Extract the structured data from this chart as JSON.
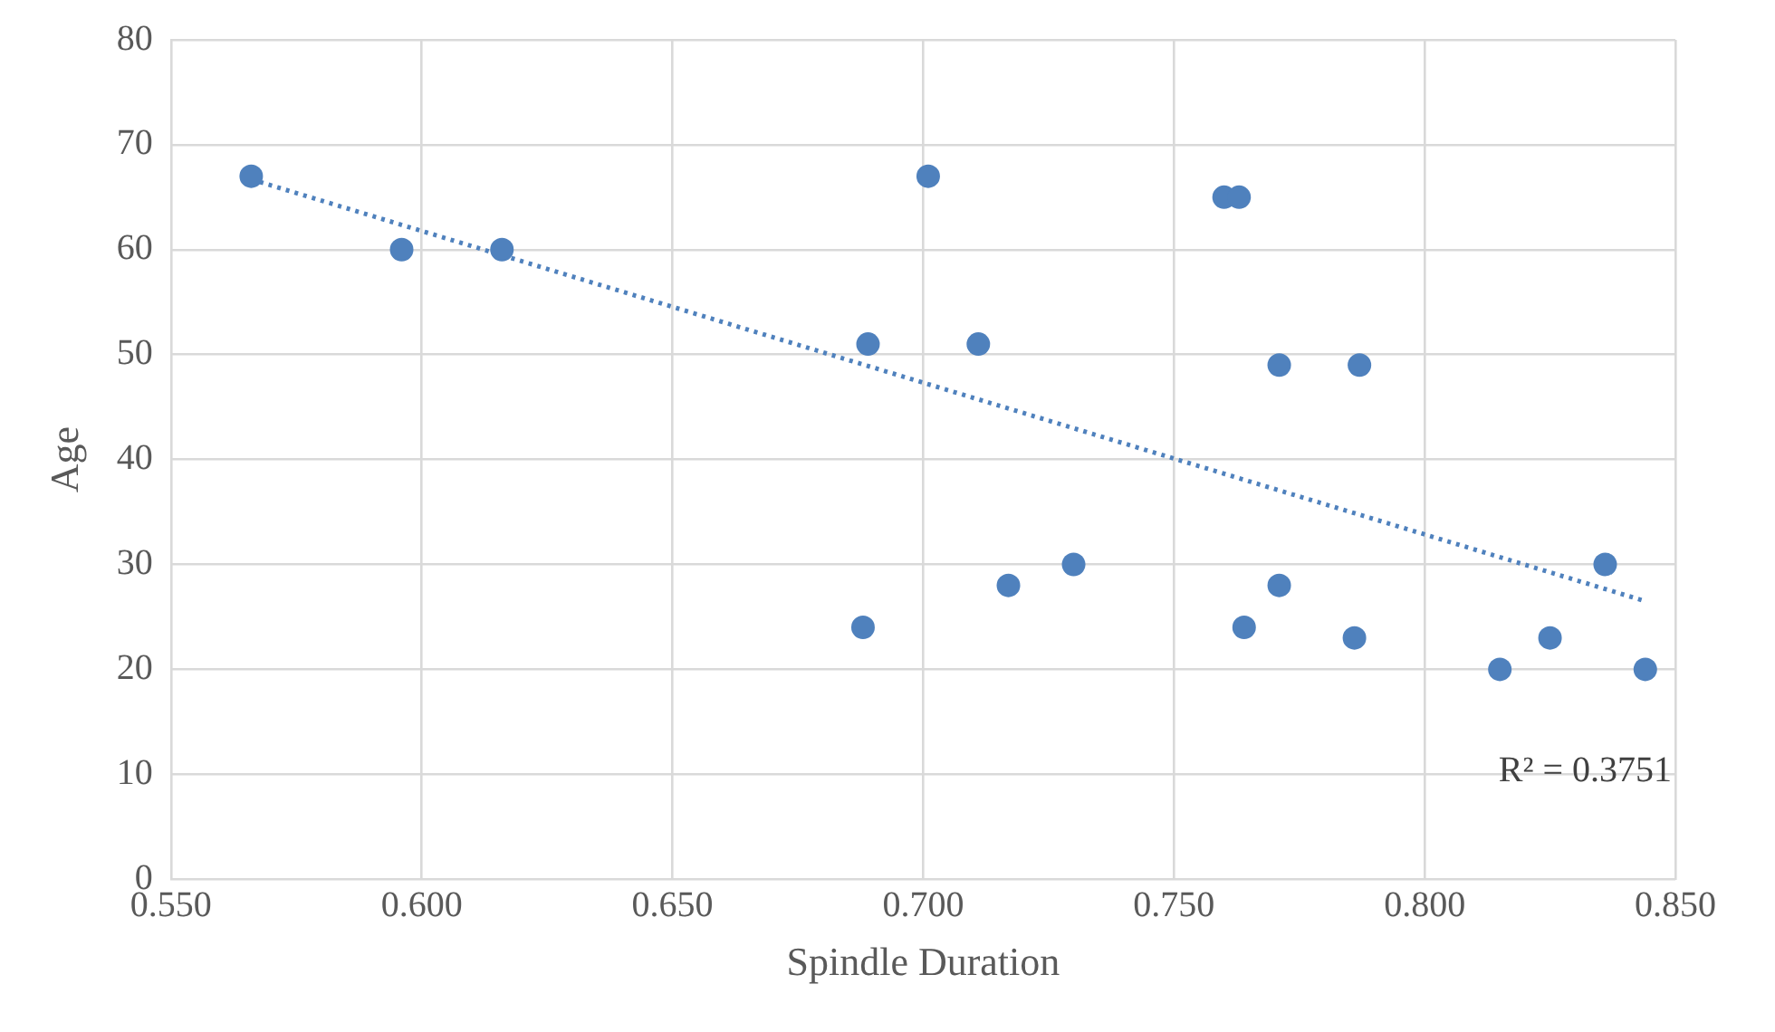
{
  "chart_data": {
    "type": "scatter",
    "xlabel": "Spindle Duration",
    "ylabel": "Age",
    "xlim": [
      0.55,
      0.85
    ],
    "xticks": [
      {
        "value": 0.55,
        "label": "0.550"
      },
      {
        "value": 0.6,
        "label": "0.600"
      },
      {
        "value": 0.65,
        "label": "0.650"
      },
      {
        "value": 0.7,
        "label": "0.700"
      },
      {
        "value": 0.75,
        "label": "0.750"
      },
      {
        "value": 0.8,
        "label": "0.800"
      },
      {
        "value": 0.85,
        "label": "0.850"
      }
    ],
    "ylim": [
      0,
      80
    ],
    "yticks": [
      0,
      10,
      20,
      30,
      40,
      50,
      60,
      70,
      80
    ],
    "grid": true,
    "legend": false,
    "marker": "circle",
    "annotations": [
      "R² = 0.3751"
    ],
    "series": [
      {
        "color": "#4f81bd",
        "x": [
          0.566,
          0.596,
          0.616,
          0.688,
          0.689,
          0.701,
          0.711,
          0.717,
          0.73,
          0.76,
          0.763,
          0.764,
          0.771,
          0.771,
          0.786,
          0.787,
          0.815,
          0.825,
          0.836,
          0.844
        ],
        "values": [
          67,
          60,
          60,
          24,
          51,
          67,
          51,
          28,
          30,
          65,
          65,
          24,
          49,
          28,
          23,
          49,
          20,
          23,
          30,
          20
        ]
      },
      {
        "type": "line",
        "color": "#4f81bd",
        "marker": "none",
        "line_style": "dotted",
        "x": [
          0.566,
          0.844
        ],
        "values": [
          66.7,
          26.5
        ]
      }
    ]
  }
}
